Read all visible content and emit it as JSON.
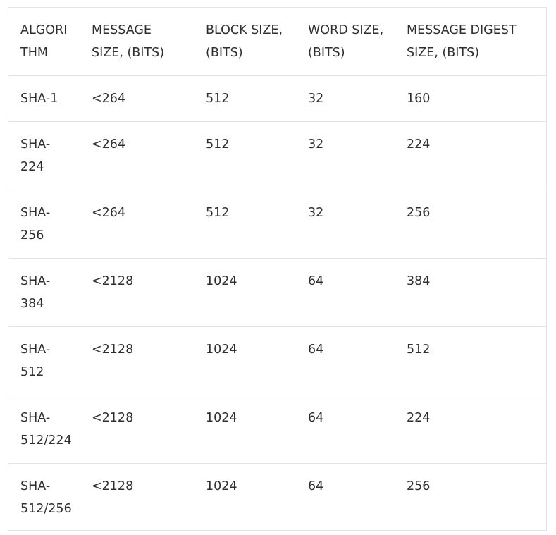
{
  "table": {
    "headers": [
      "ALGORI\nTHM",
      "MESSAGE\nSIZE,  (BITS)",
      "BLOCK SIZE,\n (BITS)",
      "WORD SIZE,\n(BITS)",
      "MESSAGE DIGEST\nSIZE, (BITS)"
    ],
    "rows": [
      [
        "SHA-1",
        "<264",
        "512",
        "32",
        "160"
      ],
      [
        "SHA-\n224",
        "<264",
        "512",
        "32",
        "224"
      ],
      [
        "SHA-\n256",
        "<264",
        "512",
        "32",
        "256"
      ],
      [
        "SHA-\n384",
        "<2128",
        "1024",
        "64",
        "384"
      ],
      [
        "SHA-\n512",
        "<2128",
        "1024",
        "64",
        "512"
      ],
      [
        "SHA-\n512/224",
        "<2128",
        "1024",
        "64",
        "224"
      ],
      [
        "SHA-\n512/256",
        "<2128",
        "1024",
        "64",
        "256"
      ]
    ]
  }
}
